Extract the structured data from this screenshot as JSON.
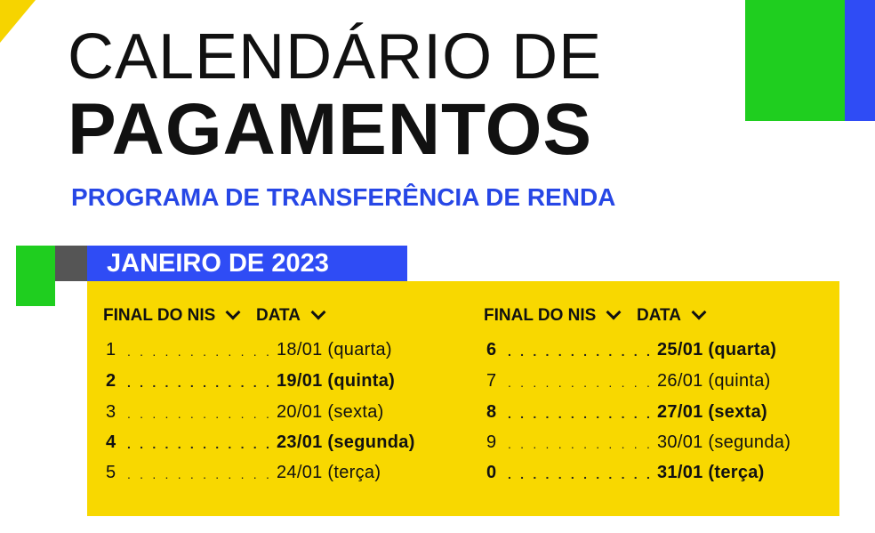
{
  "header": {
    "title_line1": "CALENDÁRIO DE",
    "title_line2": "PAGAMENTOS",
    "subtitle": "PROGRAMA DE TRANSFERÊNCIA DE RENDA"
  },
  "month": "JANEIRO DE 2023",
  "colors": {
    "yellow": "#f8d800",
    "green": "#1fce1f",
    "blue": "#2f4cf5",
    "gray": "#555555"
  },
  "table": {
    "col_nis_label": "FINAL DO NIS",
    "col_data_label": "DATA",
    "left": [
      {
        "nis": "1",
        "dots": ". . . . . . . . . . . . . . . .",
        "date": "18/01 (quarta)",
        "bold": false
      },
      {
        "nis": "2",
        "dots": ". . . . . . . . . . . . . . . .",
        "date": "19/01 (quinta)",
        "bold": true
      },
      {
        "nis": "3",
        "dots": ". . . . . . . . . . . . . . . .",
        "date": "20/01 (sexta)",
        "bold": false
      },
      {
        "nis": "4",
        "dots": ". . . . . . . . . . . . . . . .",
        "date": "23/01 (segunda)",
        "bold": true
      },
      {
        "nis": "5",
        "dots": ". . . . . . . . . . . . . . . .",
        "date": "24/01 (terça)",
        "bold": false
      }
    ],
    "right": [
      {
        "nis": "6",
        "dots": ". . . . . . . . . . . . . . . .",
        "date": "25/01 (quarta)",
        "bold": true
      },
      {
        "nis": "7",
        "dots": ". . . . . . . . . . . . . . . .",
        "date": "26/01 (quinta)",
        "bold": false
      },
      {
        "nis": "8",
        "dots": ". . . . . . . . . . . . . . . .",
        "date": "27/01 (sexta)",
        "bold": true
      },
      {
        "nis": "9",
        "dots": ". . . . . . . . . . . . . . . .",
        "date": "30/01 (segunda)",
        "bold": false
      },
      {
        "nis": "0",
        "dots": ". . . . . . . . . . . . . . . .",
        "date": "31/01 (terça)",
        "bold": true
      }
    ]
  }
}
